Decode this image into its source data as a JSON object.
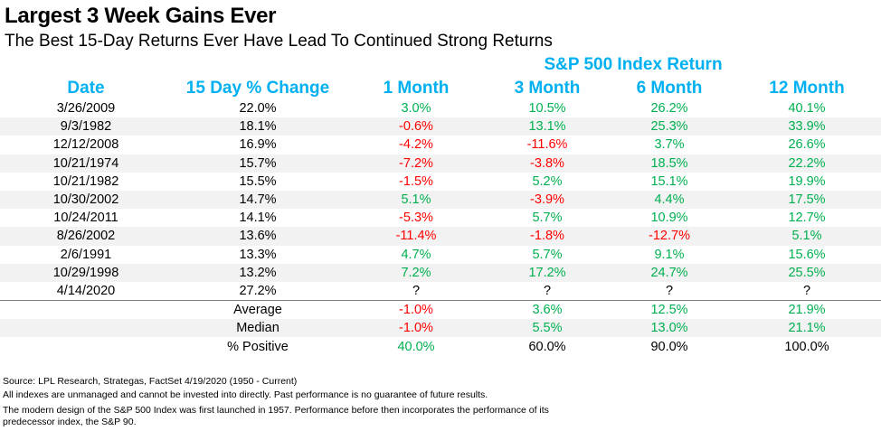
{
  "title": "Largest 3 Week Gains Ever",
  "subtitle": "The Best 15-Day Returns Ever Have Lead To Continued Strong Returns",
  "colors": {
    "header": "#00b0f0",
    "positive": "#00b050",
    "negative": "#ff0000",
    "shade": "#f2f2f2"
  },
  "chart_data": {
    "type": "table",
    "group_header": "S&P 500 Index Return",
    "columns": [
      "Date",
      "15 Day % Change",
      "1 Month",
      "3 Month",
      "6 Month",
      "12 Month"
    ],
    "rows": [
      [
        "3/26/2009",
        "22.0%",
        "3.0%",
        "10.5%",
        "26.2%",
        "40.1%"
      ],
      [
        "9/3/1982",
        "18.1%",
        "-0.6%",
        "13.1%",
        "25.3%",
        "33.9%"
      ],
      [
        "12/12/2008",
        "16.9%",
        "-4.2%",
        "-11.6%",
        "3.7%",
        "26.6%"
      ],
      [
        "10/21/1974",
        "15.7%",
        "-7.2%",
        "-3.8%",
        "18.5%",
        "22.2%"
      ],
      [
        "10/21/1982",
        "15.5%",
        "-1.5%",
        "5.2%",
        "15.1%",
        "19.9%"
      ],
      [
        "10/30/2002",
        "14.7%",
        "5.1%",
        "-3.9%",
        "4.4%",
        "17.5%"
      ],
      [
        "10/24/2011",
        "14.1%",
        "-5.3%",
        "5.7%",
        "10.9%",
        "12.7%"
      ],
      [
        "8/26/2002",
        "13.6%",
        "-11.4%",
        "-1.8%",
        "-12.7%",
        "5.1%"
      ],
      [
        "2/6/1991",
        "13.3%",
        "4.7%",
        "5.7%",
        "9.1%",
        "15.6%"
      ],
      [
        "10/29/1998",
        "13.2%",
        "7.2%",
        "17.2%",
        "24.7%",
        "25.5%"
      ],
      [
        "4/14/2020",
        "27.2%",
        "?",
        "?",
        "?",
        "?"
      ]
    ],
    "summary": [
      [
        "",
        "Average",
        "-1.0%",
        "3.6%",
        "12.5%",
        "21.9%"
      ],
      [
        "",
        "Median",
        "-1.0%",
        "5.5%",
        "13.0%",
        "21.1%"
      ],
      [
        "",
        "% Positive",
        "40.0%",
        "60.0%",
        "90.0%",
        "100.0%"
      ]
    ]
  },
  "notes": [
    "Source: LPL Research, Strategas, FactSet 4/19/2020 (1950 - Current)",
    "All indexes are unmanaged and cannot be invested into directly. Past performance is no guarantee of future results.",
    "The modern design of the S&P 500 Index was first launched in 1957. Performance before then incorporates the performance of its predecessor index, the S&P 90."
  ]
}
